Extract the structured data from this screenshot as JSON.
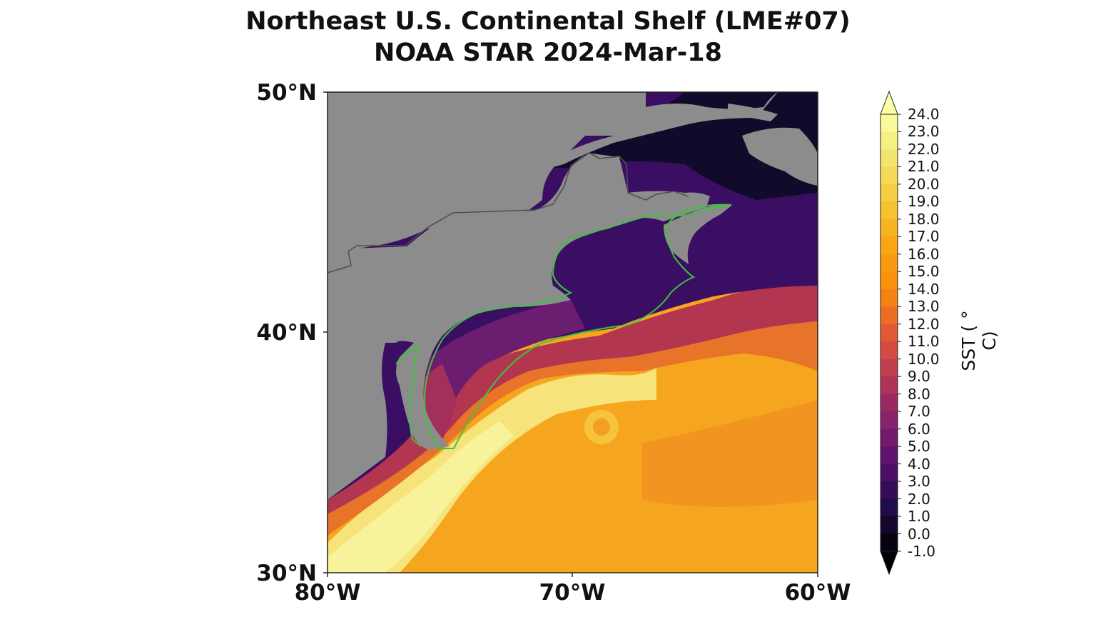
{
  "title": "Northeast U.S. Continental Shelf (LME#07)",
  "subtitle": "NOAA STAR 2024-Mar-18",
  "map": {
    "extent": {
      "lon": [
        -80,
        -60
      ],
      "lat": [
        30,
        50
      ]
    },
    "lat_ticks": [
      {
        "value": 50,
        "label": "50°N"
      },
      {
        "value": 40,
        "label": "40°N"
      },
      {
        "value": 30,
        "label": "30°N"
      }
    ],
    "lon_ticks": [
      {
        "value": -80,
        "label": "80°W"
      },
      {
        "value": -70,
        "label": "70°W"
      },
      {
        "value": -60,
        "label": "60°W"
      }
    ],
    "land_color": "#8c8c8c",
    "boundary_color": "#3ec43e"
  },
  "colorbar": {
    "label": "SST ( $^\\circ$C)",
    "label_display": "SST ( ° C)",
    "min": -1.0,
    "max": 24.0,
    "ticks": [
      "24.0",
      "23.0",
      "22.0",
      "21.0",
      "20.0",
      "19.0",
      "18.0",
      "17.0",
      "16.0",
      "15.0",
      "14.0",
      "13.0",
      "12.0",
      "11.0",
      "10.0",
      "9.0",
      "8.0",
      "7.0",
      "6.0",
      "5.0",
      "4.0",
      "3.0",
      "2.0",
      "1.0",
      "0.0",
      "-1.0"
    ],
    "colormap": "inferno",
    "extend": "both"
  }
}
